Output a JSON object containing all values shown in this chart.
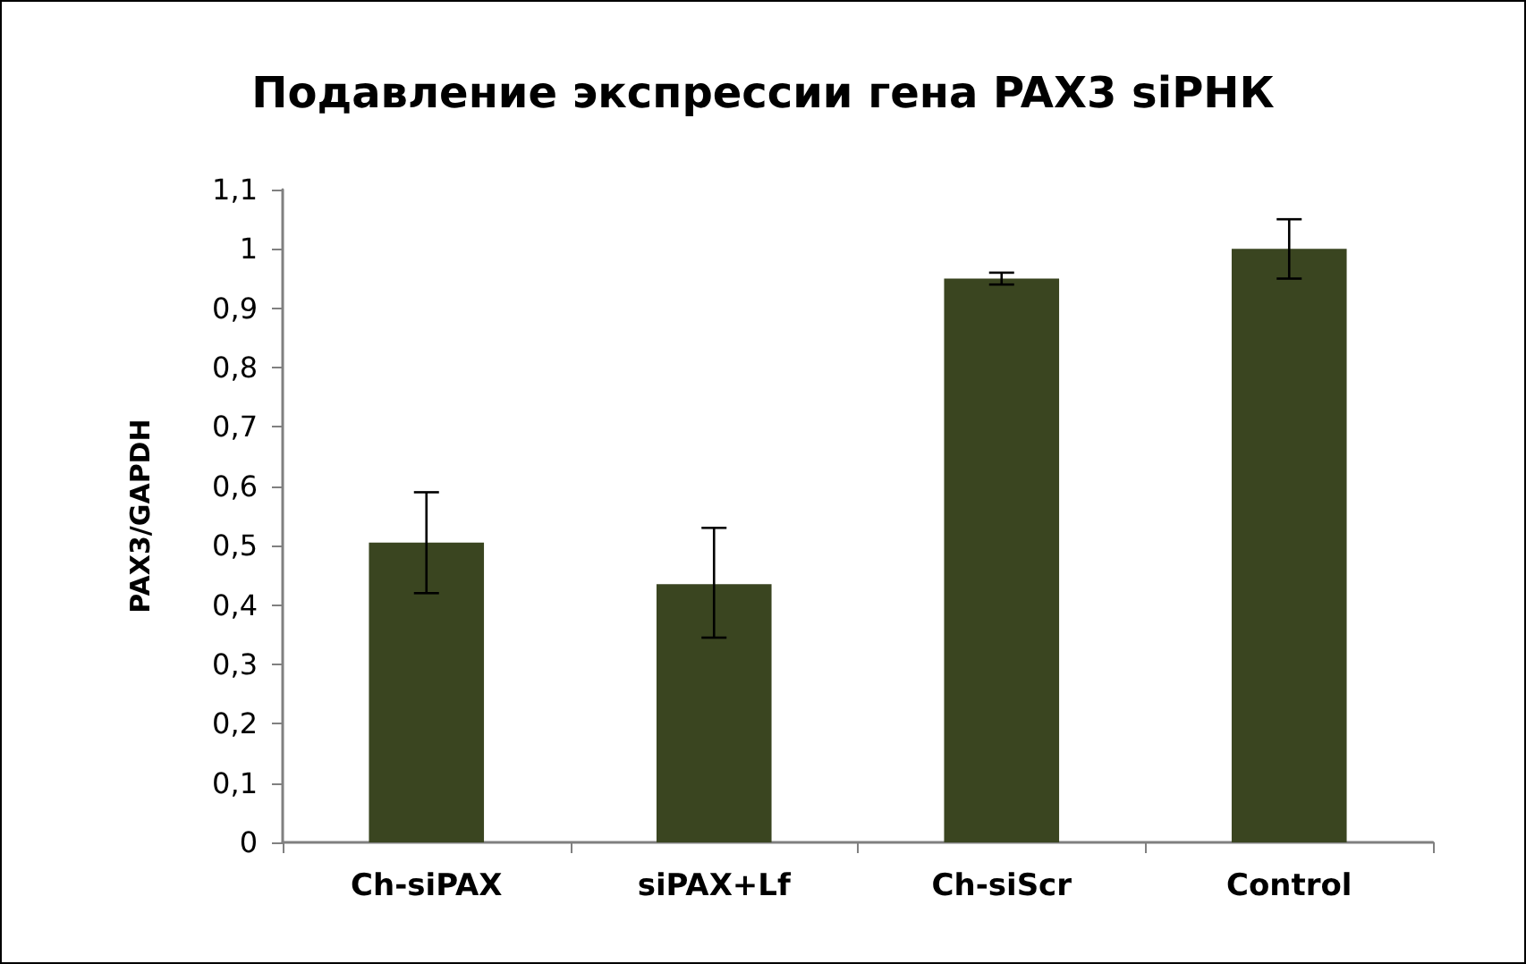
{
  "chart_data": {
    "type": "bar",
    "title": "Подавление экспрессии гена PAX3 siРНК",
    "ylabel": "PAX3/GAPDH",
    "categories": [
      "Ch-siPAX",
      "siPAX+Lf",
      "Ch-siScr",
      "Control"
    ],
    "values": [
      0.505,
      0.435,
      0.95,
      1.0
    ],
    "errors": [
      [
        0.42,
        0.59
      ],
      [
        0.345,
        0.53
      ],
      0.01,
      0.05
    ],
    "color": "#3a4520",
    "ylim": [
      0,
      1.1
    ],
    "yticks": [
      0,
      {
        "value": 0.1,
        "label": "0,1"
      },
      {
        "value": 0.2,
        "label": "0,2"
      },
      {
        "value": 0.3,
        "label": "0,3"
      },
      {
        "value": 0.4,
        "label": "0,4"
      },
      {
        "value": 0.5,
        "label": "0,5"
      },
      {
        "value": 0.6,
        "label": "0,6"
      },
      {
        "value": 0.7,
        "label": "0,7"
      },
      {
        "value": 0.8,
        "label": "0,8"
      },
      {
        "value": 0.9,
        "label": "0,9"
      },
      1,
      {
        "value": 1.1,
        "label": "1,1"
      }
    ]
  }
}
